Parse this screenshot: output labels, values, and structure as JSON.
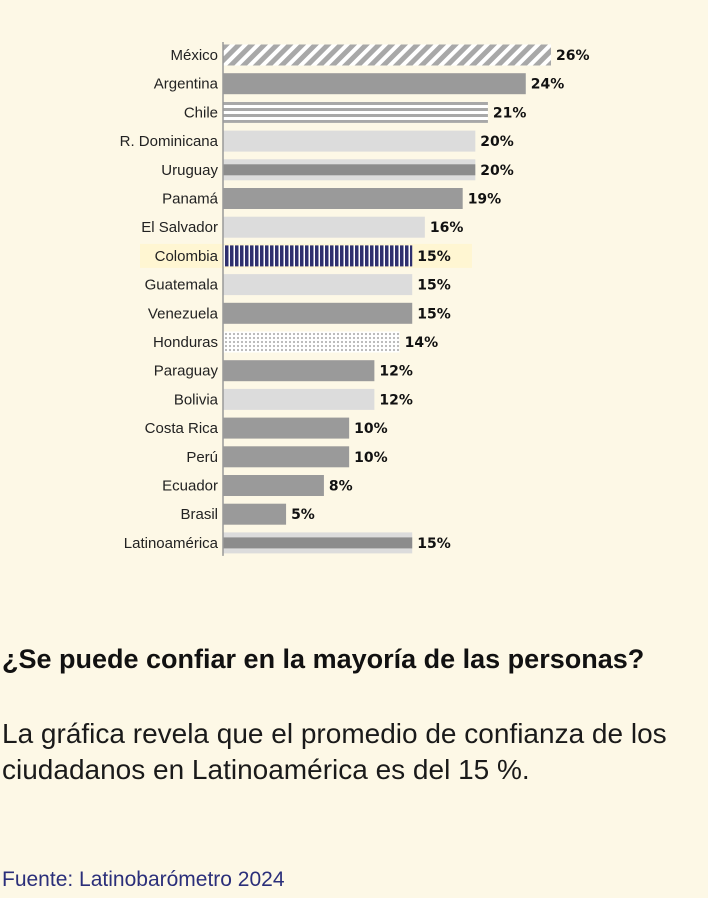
{
  "chart_data": {
    "type": "bar",
    "orientation": "horizontal",
    "value_suffix": "%",
    "xlim": [
      0,
      26
    ],
    "categories": [
      "México",
      "Argentina",
      "Chile",
      "R. Dominicana",
      "Uruguay",
      "Panamá",
      "El Salvador",
      "Colombia",
      "Guatemala",
      "Venezuela",
      "Honduras",
      "Paraguay",
      "Bolivia",
      "Costa Rica",
      "Perú",
      "Ecuador",
      "Brasil",
      "Latinoamérica"
    ],
    "values": [
      26,
      24,
      21,
      20,
      20,
      19,
      16,
      15,
      15,
      15,
      14,
      12,
      12,
      10,
      10,
      8,
      5,
      15
    ],
    "bar_styles": [
      "diagonal-stripes",
      "solid-dark",
      "horizontal-stripes",
      "solid-light",
      "solid-mid-bordered",
      "solid-dark",
      "solid-light",
      "vertical-stripes-navy",
      "solid-light",
      "solid-dark",
      "dotted",
      "solid-dark",
      "solid-light",
      "solid-dark",
      "solid-dark",
      "solid-dark",
      "solid-dark",
      "solid-mid-bordered"
    ],
    "colors": {
      "dark": "#9a9a9a",
      "mid": "#8c8c8c",
      "light": "#dcdcdc",
      "navy": "#2e2f6e",
      "stripe": "#a8a8a8",
      "dots": "#b5b5b5",
      "highlight_row": "#fff6d2",
      "axis": "#999999"
    }
  },
  "heading": "¿Se puede confiar en la mayoría de las personas?",
  "subtitle": "La gráfica revela que el promedio de confianza de los ciudadanos en Latinoamérica es del 15 %.",
  "source": "Fuente: Latinobarómetro 2024"
}
